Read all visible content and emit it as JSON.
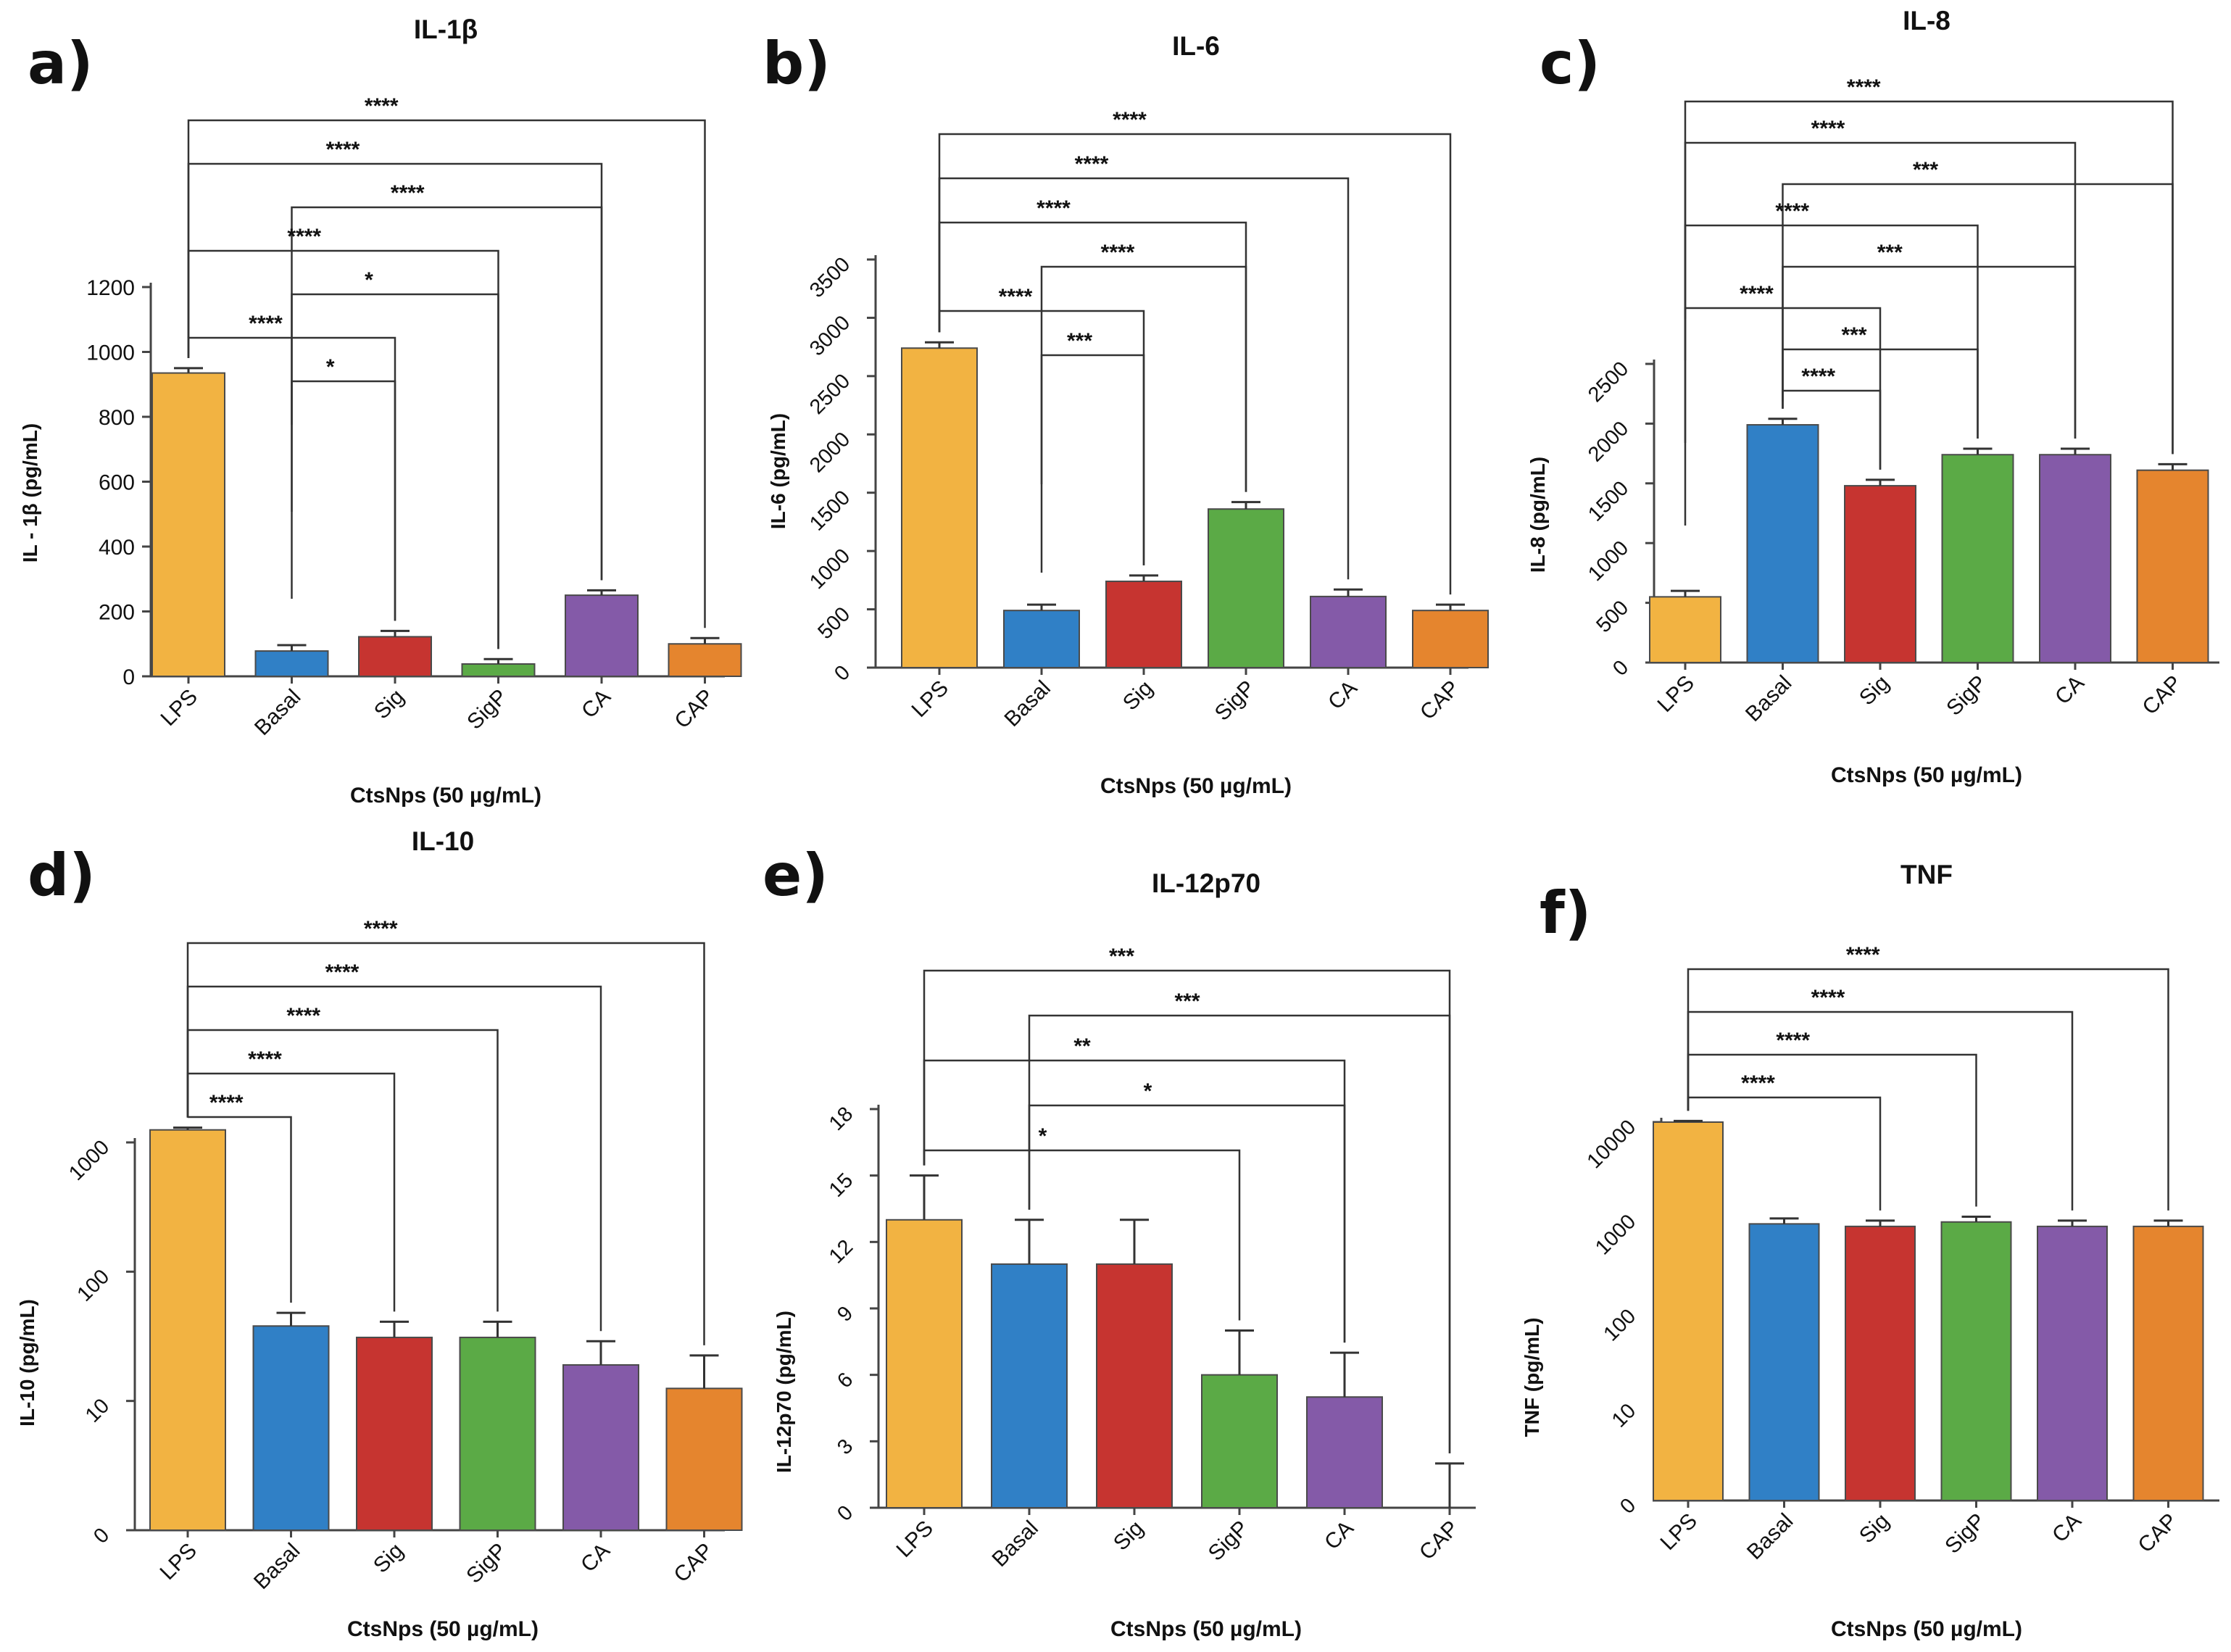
{
  "chart_data": [
    {
      "panel": "a)",
      "type": "bar",
      "title": "IL-1β",
      "xlabel": "CtsNps (50 µg/mL)",
      "ylabel": "IL - 1β (pg/mL)",
      "scale": "linear",
      "ylim": [
        0,
        1200
      ],
      "yticks": [
        0,
        200,
        400,
        600,
        800,
        1000,
        1200
      ],
      "categories": [
        "LPS",
        "Basal",
        "Sig",
        "SigP",
        "CA",
        "CAP"
      ],
      "values": [
        935,
        78,
        122,
        38,
        250,
        100
      ],
      "errors": [
        15,
        18,
        18,
        15,
        15,
        18
      ],
      "comparisons": [
        {
          "from": 0,
          "to": 5,
          "label": "****"
        },
        {
          "from": 0,
          "to": 4,
          "label": "****"
        },
        {
          "from": 1,
          "to": 4,
          "label": "****"
        },
        {
          "from": 0,
          "to": 3,
          "label": "****"
        },
        {
          "from": 1,
          "to": 3,
          "label": "*"
        },
        {
          "from": 0,
          "to": 2,
          "label": "****"
        },
        {
          "from": 1,
          "to": 2,
          "label": "*"
        }
      ]
    },
    {
      "panel": "b)",
      "type": "bar",
      "title": "IL-6",
      "xlabel": "CtsNps (50 µg/mL)",
      "ylabel": "IL-6 (pg/mL)",
      "scale": "linear",
      "ylim": [
        0,
        3500
      ],
      "yticks": [
        0,
        500,
        1000,
        1500,
        2000,
        2500,
        3000,
        3500
      ],
      "categories": [
        "LPS",
        "Basal",
        "Sig",
        "SigP",
        "CA",
        "CAP"
      ],
      "values": [
        2740,
        490,
        740,
        1360,
        610,
        490
      ],
      "errors": [
        50,
        50,
        50,
        60,
        60,
        50
      ],
      "comparisons": [
        {
          "from": 0,
          "to": 5,
          "label": "****"
        },
        {
          "from": 0,
          "to": 4,
          "label": "****"
        },
        {
          "from": 0,
          "to": 3,
          "label": "****"
        },
        {
          "from": 1,
          "to": 3,
          "label": "****"
        },
        {
          "from": 0,
          "to": 2,
          "label": "****"
        },
        {
          "from": 1,
          "to": 2,
          "label": "***"
        }
      ]
    },
    {
      "panel": "c)",
      "type": "bar",
      "title": "IL-8",
      "xlabel": "CtsNps (50 µg/mL)",
      "ylabel": "IL-8 (pg/mL)",
      "scale": "linear",
      "ylim": [
        0,
        2500
      ],
      "yticks": [
        0,
        500,
        1000,
        1500,
        2000,
        2500
      ],
      "categories": [
        "LPS",
        "Basal",
        "Sig",
        "SigP",
        "CA",
        "CAP"
      ],
      "values": [
        550,
        1990,
        1480,
        1740,
        1740,
        1610
      ],
      "errors": [
        50,
        50,
        50,
        50,
        50,
        50
      ],
      "comparisons": [
        {
          "from": 0,
          "to": 5,
          "label": "****"
        },
        {
          "from": 0,
          "to": 4,
          "label": "****"
        },
        {
          "from": 1,
          "to": 5,
          "label": "***"
        },
        {
          "from": 0,
          "to": 3,
          "label": "****"
        },
        {
          "from": 1,
          "to": 4,
          "label": "***"
        },
        {
          "from": 0,
          "to": 2,
          "label": "****"
        },
        {
          "from": 1,
          "to": 3,
          "label": "***"
        },
        {
          "from": 1,
          "to": 2,
          "label": "****"
        }
      ]
    },
    {
      "panel": "d)",
      "type": "bar",
      "title": "IL-10",
      "xlabel": "CtsNps (50 µg/mL)",
      "ylabel": "IL-10 (pg/mL)",
      "scale": "log",
      "yticks": [
        0,
        10,
        100,
        1000
      ],
      "ytick_labels": [
        "0",
        "10",
        "100",
        "1000"
      ],
      "categories": [
        "LPS",
        "Basal",
        "Sig",
        "SigP",
        "CA",
        "CAP"
      ],
      "values": [
        1250,
        38,
        31,
        31,
        19,
        12.5
      ],
      "errors": [
        50,
        10,
        10,
        10,
        10,
        10
      ],
      "comparisons": [
        {
          "from": 0,
          "to": 5,
          "label": "****"
        },
        {
          "from": 0,
          "to": 4,
          "label": "****"
        },
        {
          "from": 0,
          "to": 3,
          "label": "****"
        },
        {
          "from": 0,
          "to": 2,
          "label": "****"
        },
        {
          "from": 0,
          "to": 1,
          "label": "****"
        }
      ]
    },
    {
      "panel": "e)",
      "type": "bar",
      "title": "IL-12p70",
      "xlabel": "CtsNps (50 µg/mL)",
      "ylabel": "IL-12p70 (pg/mL)",
      "scale": "linear",
      "ylim": [
        0,
        18
      ],
      "yticks": [
        0,
        3,
        6,
        9,
        12,
        15,
        18
      ],
      "categories": [
        "LPS",
        "Basal",
        "Sig",
        "SigP",
        "CA",
        "CAP"
      ],
      "values": [
        13,
        11,
        11,
        6,
        5,
        0
      ],
      "errors": [
        2,
        2,
        2,
        2,
        2,
        2
      ],
      "comparisons": [
        {
          "from": 0,
          "to": 5,
          "label": "***"
        },
        {
          "from": 1,
          "to": 5,
          "label": "***"
        },
        {
          "from": 0,
          "to": 4,
          "label": "**"
        },
        {
          "from": 1,
          "to": 4,
          "label": "*"
        },
        {
          "from": 0,
          "to": 3,
          "label": "*"
        }
      ]
    },
    {
      "panel": "f)",
      "type": "bar",
      "title": "TNF",
      "xlabel": "CtsNps (50 µg/mL)",
      "ylabel": "TNF (pg/mL)",
      "scale": "log",
      "yticks": [
        0,
        10,
        100,
        1000,
        10000
      ],
      "ytick_labels": [
        "0",
        "10",
        "100",
        "1000",
        "10000"
      ],
      "categories": [
        "LPS",
        "Basal",
        "Sig",
        "SigP",
        "CA",
        "CAP"
      ],
      "values": [
        10000,
        840,
        790,
        880,
        790,
        790
      ],
      "errors": [
        300,
        120,
        120,
        120,
        120,
        120
      ],
      "comparisons": [
        {
          "from": 0,
          "to": 5,
          "label": "****"
        },
        {
          "from": 0,
          "to": 4,
          "label": "****"
        },
        {
          "from": 0,
          "to": 3,
          "label": "****"
        },
        {
          "from": 0,
          "to": 2,
          "label": "****"
        }
      ]
    }
  ],
  "colors": {
    "LPS": "#F2B342",
    "Basal": "#3080C6",
    "Sig": "#C63430",
    "SigP": "#5BAA46",
    "CA": "#845AA8",
    "CAP": "#E5852E",
    "axis": "#444444",
    "text": "#111111"
  }
}
